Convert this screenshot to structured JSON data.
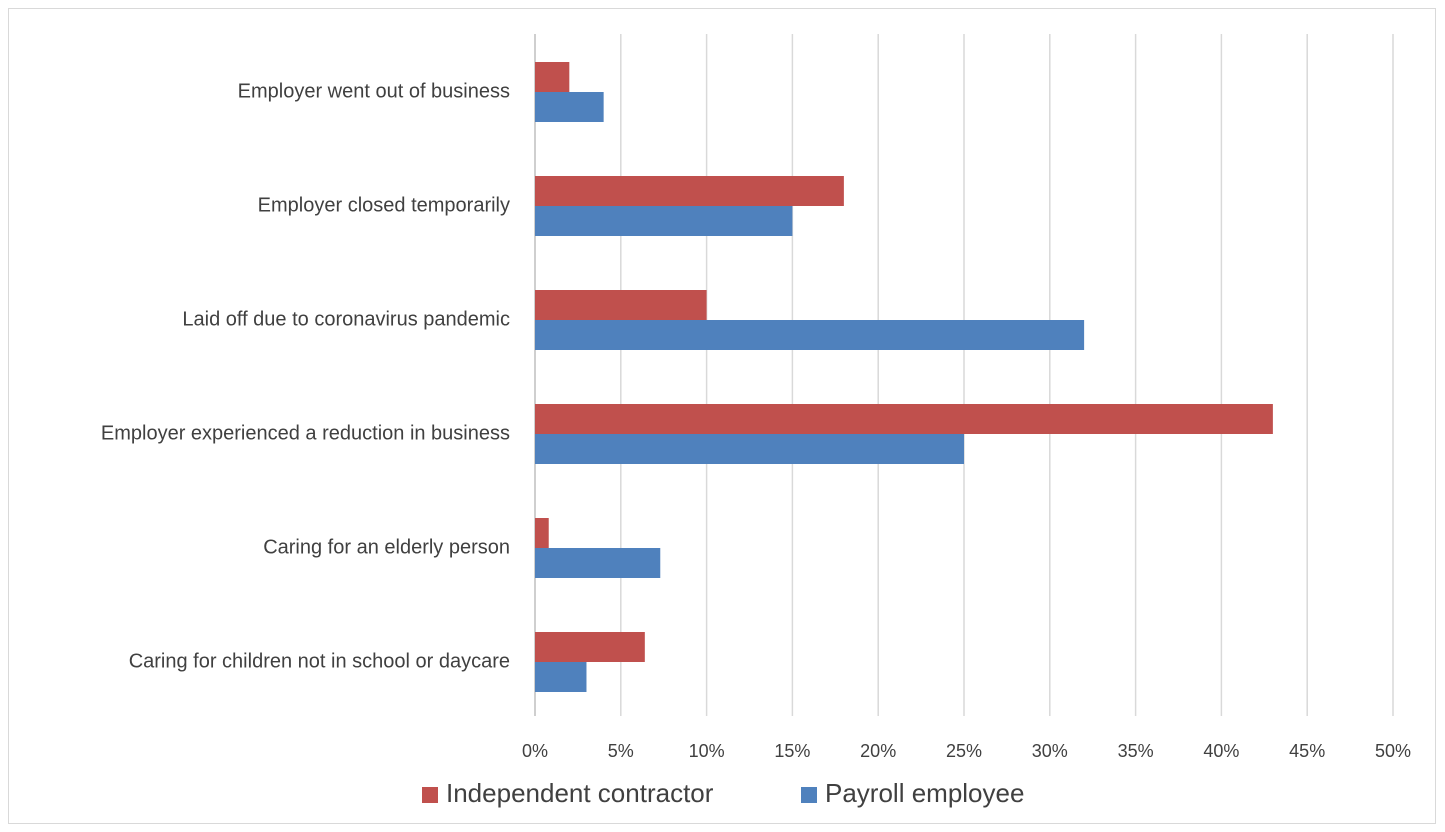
{
  "chart_data": {
    "type": "bar",
    "orientation": "horizontal",
    "title": "",
    "xlabel": "",
    "ylabel": "",
    "categories": [
      "Employer went out of business",
      "Employer closed temporarily",
      "Laid off due to coronavirus pandemic",
      "Employer experienced a reduction in business",
      "Caring for an elderly person",
      "Caring for children not in school or daycare"
    ],
    "series": [
      {
        "name": "Independent contractor",
        "color": "#c0504d",
        "values": [
          2,
          18,
          10,
          43,
          0.8,
          6.4
        ]
      },
      {
        "name": "Payroll employee",
        "color": "#4f81bd",
        "values": [
          4,
          15,
          32,
          25,
          7.3,
          3
        ]
      }
    ],
    "xlim": [
      0,
      50
    ],
    "x_ticks": [
      0,
      5,
      10,
      15,
      20,
      25,
      30,
      35,
      40,
      45,
      50
    ],
    "x_tick_labels": [
      "0%",
      "5%",
      "10%",
      "15%",
      "20%",
      "25%",
      "30%",
      "35%",
      "40%",
      "45%",
      "50%"
    ],
    "grid": true,
    "legend_position": "bottom",
    "gridline_color": "#d9d9d9",
    "axis_color": "#bfbfbf"
  }
}
